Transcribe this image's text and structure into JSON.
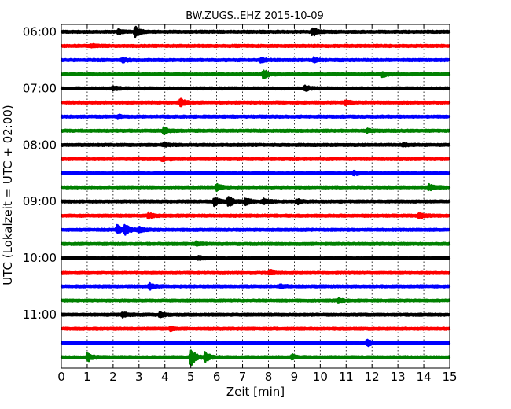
{
  "chart_data": {
    "type": "line",
    "title": "BW.ZUGS..EHZ 2015-10-09",
    "xlabel": "Zeit  [min]",
    "ylabel": "UTC (Lokalzeit = UTC + 02:00)",
    "xlim": [
      0,
      15
    ],
    "x_ticks": [
      0,
      1,
      2,
      3,
      4,
      5,
      6,
      7,
      8,
      9,
      10,
      11,
      12,
      13,
      14,
      15
    ],
    "y_tick_labels": [
      "06:00",
      "07:00",
      "08:00",
      "09:00",
      "10:00",
      "11:00"
    ],
    "trace_interval_minutes": 15,
    "grid": "vertical dotted lines at each minute",
    "color_cycle": [
      "#000000",
      "#ff0000",
      "#0000ff",
      "#008000"
    ],
    "traces": [
      {
        "start": "06:00",
        "color": "#000000",
        "events": [
          {
            "t": 2.2,
            "amp": 0.35
          },
          {
            "t": 2.85,
            "amp": 0.9
          },
          {
            "t": 9.7,
            "amp": 0.8
          }
        ]
      },
      {
        "start": "06:15",
        "color": "#ff0000",
        "events": [
          {
            "t": 1.15,
            "amp": 0.3
          }
        ]
      },
      {
        "start": "06:30",
        "color": "#0000ff",
        "events": [
          {
            "t": 2.35,
            "amp": 0.35
          },
          {
            "t": 7.7,
            "amp": 0.4
          },
          {
            "t": 9.75,
            "amp": 0.35
          }
        ]
      },
      {
        "start": "06:45",
        "color": "#008000",
        "events": [
          {
            "t": 7.8,
            "amp": 0.9
          },
          {
            "t": 12.4,
            "amp": 0.45
          }
        ]
      },
      {
        "start": "07:00",
        "color": "#000000",
        "events": [
          {
            "t": 2.0,
            "amp": 0.3
          },
          {
            "t": 9.4,
            "amp": 0.5
          }
        ]
      },
      {
        "start": "07:15",
        "color": "#ff0000",
        "events": [
          {
            "t": 4.6,
            "amp": 0.75
          },
          {
            "t": 10.95,
            "amp": 0.4
          }
        ]
      },
      {
        "start": "07:30",
        "color": "#0000ff",
        "events": [
          {
            "t": 2.2,
            "amp": 0.25
          }
        ]
      },
      {
        "start": "07:45",
        "color": "#008000",
        "events": [
          {
            "t": 3.95,
            "amp": 0.6
          },
          {
            "t": 11.8,
            "amp": 0.3
          }
        ]
      },
      {
        "start": "08:00",
        "color": "#000000",
        "events": [
          {
            "t": 3.95,
            "amp": 0.3
          },
          {
            "t": 13.2,
            "amp": 0.3
          }
        ]
      },
      {
        "start": "08:15",
        "color": "#ff0000",
        "events": [
          {
            "t": 3.9,
            "amp": 0.3
          }
        ]
      },
      {
        "start": "08:30",
        "color": "#0000ff",
        "events": [
          {
            "t": 11.3,
            "amp": 0.35
          }
        ]
      },
      {
        "start": "08:45",
        "color": "#008000",
        "events": [
          {
            "t": 6.0,
            "amp": 0.5
          },
          {
            "t": 14.2,
            "amp": 0.55
          }
        ]
      },
      {
        "start": "09:00",
        "color": "#000000",
        "events": [
          {
            "t": 5.9,
            "amp": 0.8
          },
          {
            "t": 6.45,
            "amp": 1.0
          },
          {
            "t": 7.1,
            "amp": 0.7
          },
          {
            "t": 7.8,
            "amp": 0.5
          },
          {
            "t": 9.1,
            "amp": 0.45
          }
        ]
      },
      {
        "start": "09:15",
        "color": "#ff0000",
        "events": [
          {
            "t": 3.35,
            "amp": 0.5
          },
          {
            "t": 13.8,
            "amp": 0.55
          }
        ]
      },
      {
        "start": "09:30",
        "color": "#0000ff",
        "events": [
          {
            "t": 2.15,
            "amp": 0.9
          },
          {
            "t": 2.45,
            "amp": 1.0
          },
          {
            "t": 3.0,
            "amp": 0.55
          }
        ]
      },
      {
        "start": "09:45",
        "color": "#008000",
        "events": [
          {
            "t": 5.2,
            "amp": 0.3
          }
        ]
      },
      {
        "start": "10:00",
        "color": "#000000",
        "events": [
          {
            "t": 5.3,
            "amp": 0.3
          }
        ]
      },
      {
        "start": "10:15",
        "color": "#ff0000",
        "events": [
          {
            "t": 8.05,
            "amp": 0.35
          }
        ]
      },
      {
        "start": "10:30",
        "color": "#0000ff",
        "events": [
          {
            "t": 3.4,
            "amp": 0.6
          },
          {
            "t": 8.45,
            "amp": 0.3
          }
        ]
      },
      {
        "start": "10:45",
        "color": "#008000",
        "events": [
          {
            "t": 10.7,
            "amp": 0.3
          }
        ]
      },
      {
        "start": "11:00",
        "color": "#000000",
        "events": [
          {
            "t": 2.35,
            "amp": 0.45
          },
          {
            "t": 3.8,
            "amp": 0.35
          }
        ]
      },
      {
        "start": "11:15",
        "color": "#ff0000",
        "events": [
          {
            "t": 4.2,
            "amp": 0.3
          }
        ]
      },
      {
        "start": "11:30",
        "color": "#0000ff",
        "events": [
          {
            "t": 11.8,
            "amp": 0.55
          }
        ]
      },
      {
        "start": "11:45",
        "color": "#008000",
        "events": [
          {
            "t": 1.0,
            "amp": 0.85
          },
          {
            "t": 5.0,
            "amp": 1.6
          },
          {
            "t": 5.55,
            "amp": 0.9
          },
          {
            "t": 8.9,
            "amp": 0.5
          }
        ]
      }
    ]
  }
}
